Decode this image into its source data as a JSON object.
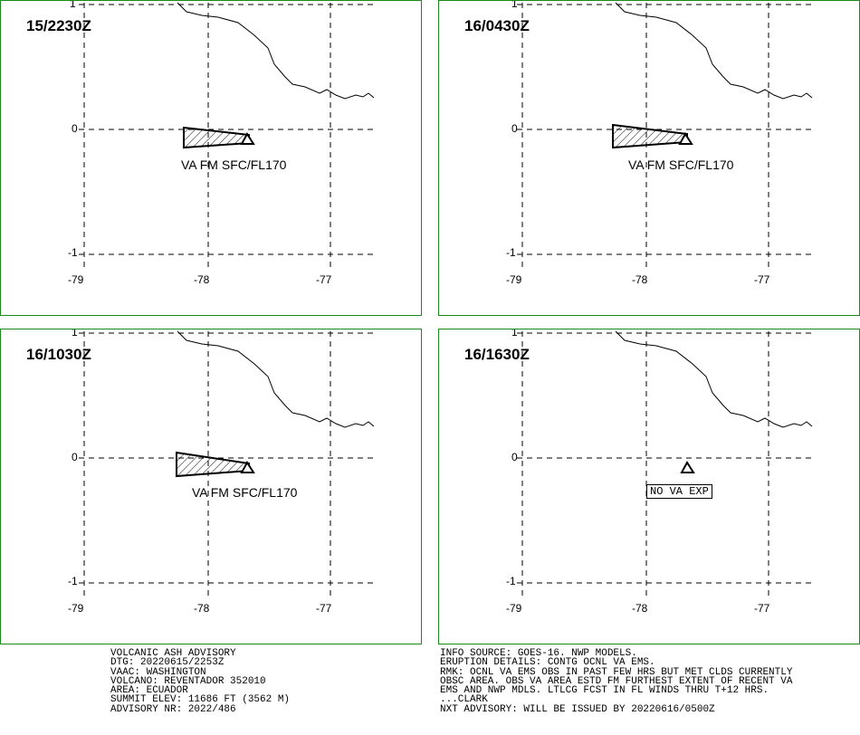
{
  "panels": [
    {
      "time": "15/2230Z",
      "label": "VA FM SFC/FL170"
    },
    {
      "time": "16/0430Z",
      "label": "VA FM SFC/FL170"
    },
    {
      "time": "16/1030Z",
      "label": "VA FM SFC/FL170"
    },
    {
      "time": "16/1630Z",
      "label": "NO VA EXP"
    }
  ],
  "axes": {
    "y_ticks": [
      "1",
      "0",
      "-1"
    ],
    "x_ticks": [
      "-79",
      "-78",
      "-77"
    ]
  },
  "advisory": {
    "title": "VOLCANIC ASH ADVISORY",
    "dtg": "DTG: 20220615/2253Z",
    "vaac": "VAAC: WASHINGTON",
    "volcano": "VOLCANO: REVENTADOR 352010",
    "area": "AREA: ECUADOR",
    "summit": "SUMMIT ELEV: 11686 FT (3562 M)",
    "advisory_nr": "ADVISORY NR: 2022/486"
  },
  "info": {
    "source": "INFO SOURCE: GOES-16. NWP MODELS.",
    "eruption": "ERUPTION DETAILS: CONTG OCNL VA EMS.",
    "rmk1": "RMK: OCNL VA EMS OBS IN PAST FEW HRS BUT MET CLDS CURRENTLY",
    "rmk2": "OBSC AREA. OBS VA AREA ESTD FM FURTHEST EXTENT OF RECENT VA",
    "rmk3": "EMS AND NWP MDLS. LTLCG FCST IN FL WINDS THRU T+12 HRS.",
    "signature": "...CLARK",
    "next": "NXT ADVISORY: WILL BE ISSUED BY 20220616/0500Z"
  }
}
